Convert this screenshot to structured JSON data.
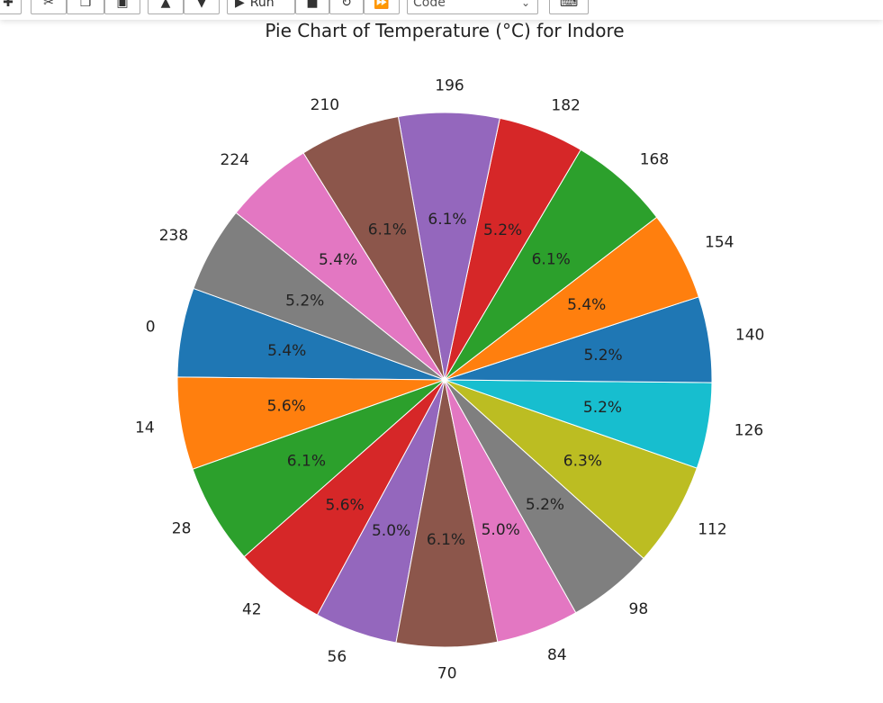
{
  "toolbar": {
    "run_label": "Run",
    "cell_type": "Code"
  },
  "chart_data": {
    "type": "pie",
    "title": "Pie Chart of Temperature (°C) for Indore",
    "categories": [
      "0",
      "14",
      "28",
      "42",
      "56",
      "70",
      "84",
      "98",
      "112",
      "126",
      "140",
      "154",
      "168",
      "182",
      "196",
      "210",
      "224",
      "238"
    ],
    "values": [
      5.4,
      5.6,
      6.1,
      5.6,
      5.0,
      6.1,
      5.0,
      5.2,
      6.3,
      5.2,
      5.2,
      5.4,
      6.1,
      5.2,
      6.1,
      6.1,
      5.4,
      5.2
    ],
    "labels": [
      "5.4%",
      "5.6%",
      "6.1%",
      "5.6%",
      "5.0%",
      "6.1%",
      "5.0%",
      "5.2%",
      "6.3%",
      "5.2%",
      "5.2%",
      "5.4%",
      "6.1%",
      "5.2%",
      "6.1%",
      "6.1%",
      "5.4%",
      "5.2%"
    ],
    "colors": [
      "#1f77b4",
      "#ff7f0e",
      "#2ca02c",
      "#d62728",
      "#9467bd",
      "#8c564b",
      "#e377c2",
      "#7f7f7f",
      "#bcbd22",
      "#17becf",
      "#1f77b4",
      "#ff7f0e",
      "#2ca02c",
      "#d62728",
      "#9467bd",
      "#8c564b",
      "#e377c2",
      "#7f7f7f"
    ],
    "start_angle": 160,
    "direction": "counterclockwise"
  }
}
